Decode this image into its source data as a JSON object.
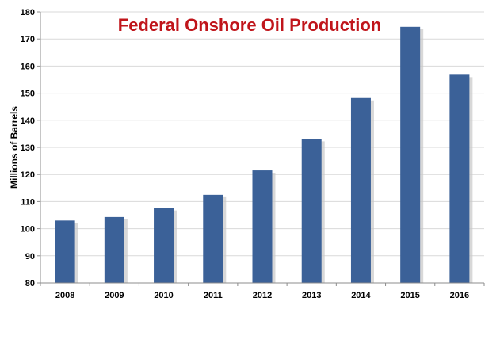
{
  "chart_data": {
    "type": "bar",
    "title": "Federal Onshore Oil Production",
    "xlabel": "",
    "ylabel": "Millions of Barrels",
    "categories": [
      "2008",
      "2009",
      "2010",
      "2011",
      "2012",
      "2013",
      "2014",
      "2015",
      "2016"
    ],
    "values": [
      103,
      104.3,
      107.6,
      112.5,
      121.5,
      133.1,
      148.2,
      174.5,
      156.8
    ],
    "ylim": [
      80,
      180
    ],
    "yticks": [
      "80",
      "90",
      "100",
      "110",
      "120",
      "130",
      "140",
      "150",
      "160",
      "170",
      "180"
    ],
    "grid": true,
    "legend": "none",
    "colors": {
      "bar": "#3b6198",
      "bar_shadow": "#c8c8c8",
      "title": "#c0151b",
      "grid": "#d9d9d9",
      "axis": "#8c8c8c"
    }
  }
}
